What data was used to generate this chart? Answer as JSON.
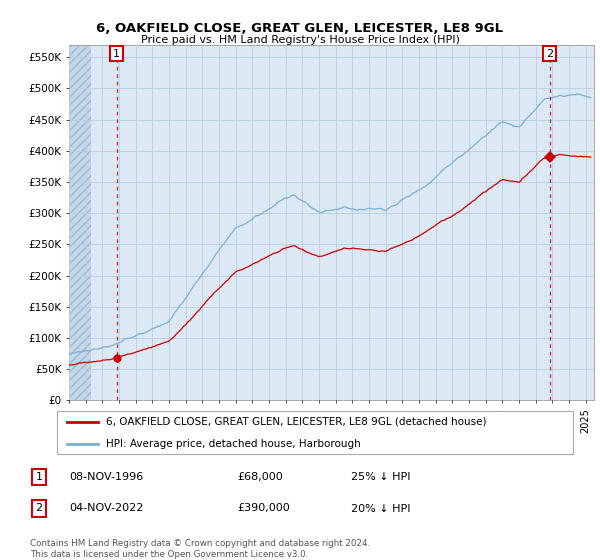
{
  "title1": "6, OAKFIELD CLOSE, GREAT GLEN, LEICESTER, LE8 9GL",
  "title2": "Price paid vs. HM Land Registry's House Price Index (HPI)",
  "ylabel_ticks": [
    "£0",
    "£50K",
    "£100K",
    "£150K",
    "£200K",
    "£250K",
    "£300K",
    "£350K",
    "£400K",
    "£450K",
    "£500K",
    "£550K"
  ],
  "ylim": [
    0,
    570000
  ],
  "yticks": [
    0,
    50000,
    100000,
    150000,
    200000,
    250000,
    300000,
    350000,
    400000,
    450000,
    500000,
    550000
  ],
  "xmin": 1994.0,
  "xmax": 2025.5,
  "sale1_x": 1996.85,
  "sale1_y": 68000,
  "sale2_x": 2022.84,
  "sale2_y": 390000,
  "legend_line1": "6, OAKFIELD CLOSE, GREAT GLEN, LEICESTER, LE8 9GL (detached house)",
  "legend_line2": "HPI: Average price, detached house, Harborough",
  "red_color": "#cc0000",
  "blue_color": "#7bafd4",
  "bg_color": "#dce9f5",
  "hatch_bg": "#c5d8ea",
  "grid_color": "#b8cfe0",
  "footer": "Contains HM Land Registry data © Crown copyright and database right 2024.\nThis data is licensed under the Open Government Licence v3.0."
}
